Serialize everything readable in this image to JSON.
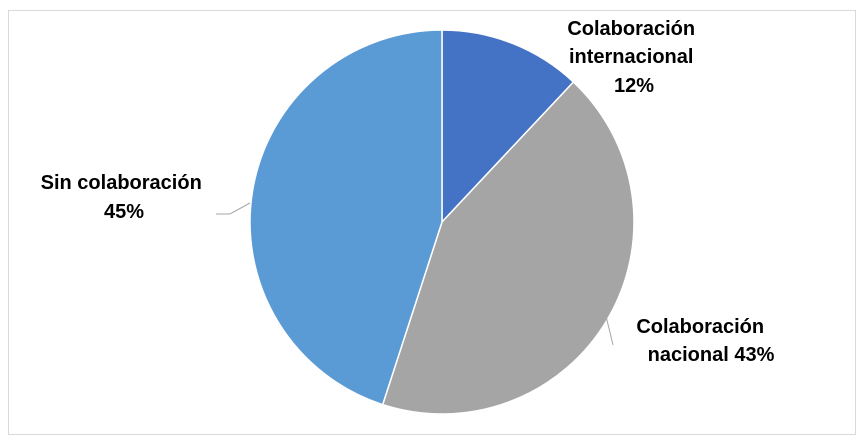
{
  "chart_data": {
    "type": "pie",
    "title": "",
    "legend": "none",
    "start_angle_deg": 0,
    "direction": "clockwise",
    "slices": [
      {
        "name": "Colaboración internacional",
        "value": 12,
        "color": "#4472c4",
        "label_lines": [
          "Colaboración",
          "internacional",
          "12%"
        ]
      },
      {
        "name": "Colaboración nacional",
        "value": 43,
        "color": "#a5a5a5",
        "label_lines": [
          "Colaboración",
          "nacional  43%"
        ]
      },
      {
        "name": "Sin colaboración",
        "value": 45,
        "color": "#5b9bd5",
        "label_lines": [
          "Sin colaboración",
          "45%"
        ]
      }
    ]
  }
}
